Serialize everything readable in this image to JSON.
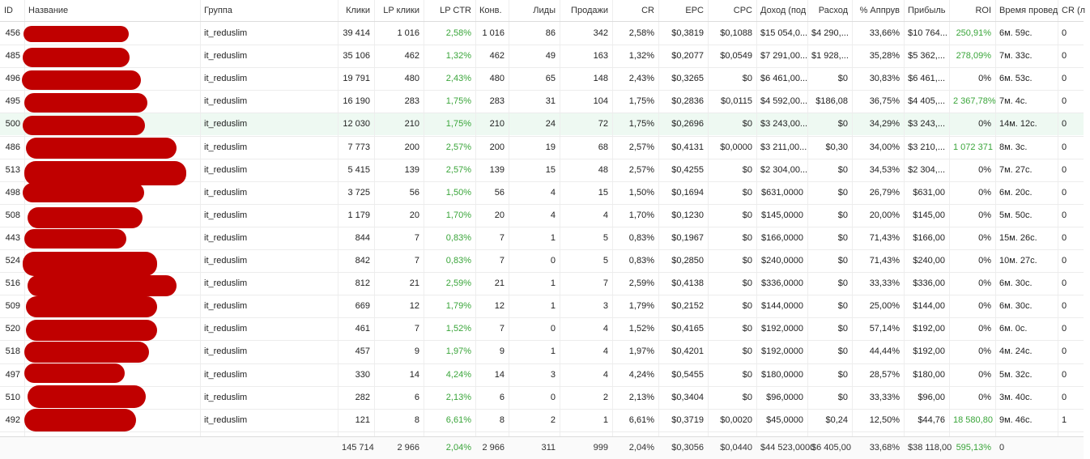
{
  "columns": [
    {
      "key": "id",
      "label": "ID"
    },
    {
      "key": "name",
      "label": "Название"
    },
    {
      "key": "group",
      "label": "Группа"
    },
    {
      "key": "clicks",
      "label": "Клики"
    },
    {
      "key": "lp_clicks",
      "label": "LP клики"
    },
    {
      "key": "lp_ctr",
      "label": "LP CTR"
    },
    {
      "key": "conv",
      "label": "Конв."
    },
    {
      "key": "leads",
      "label": "Лиды"
    },
    {
      "key": "sales",
      "label": "Продажи"
    },
    {
      "key": "cr",
      "label": "CR"
    },
    {
      "key": "epc",
      "label": "EPC"
    },
    {
      "key": "cpc",
      "label": "CPC"
    },
    {
      "key": "income",
      "label": "Доход (под"
    },
    {
      "key": "cost",
      "label": "Расход"
    },
    {
      "key": "approve",
      "label": "% Аппрув"
    },
    {
      "key": "profit",
      "label": "Прибыль"
    },
    {
      "key": "roi",
      "label": "ROI"
    },
    {
      "key": "time",
      "label": "Время провед"
    },
    {
      "key": "cr2",
      "label": "CR (л"
    }
  ],
  "rows": [
    {
      "id": "456",
      "group": "it_reduslim",
      "clicks": "39 414",
      "lp_clicks": "1 016",
      "lp_ctr": "2,58%",
      "conv": "1 016",
      "leads": "86",
      "sales": "342",
      "cr": "2,58%",
      "epc": "$0,3819",
      "cpc": "$0,1088",
      "income": "$15 054,0...",
      "cost": "$4 290,...",
      "approve": "33,66%",
      "profit": "$10 764...",
      "roi": "250,91%",
      "roi_green": true,
      "time": "6м. 59с.",
      "cr2": "0"
    },
    {
      "id": "485",
      "group": "it_reduslim",
      "clicks": "35 106",
      "lp_clicks": "462",
      "lp_ctr": "1,32%",
      "conv": "462",
      "leads": "49",
      "sales": "163",
      "cr": "1,32%",
      "epc": "$0,2077",
      "cpc": "$0,0549",
      "income": "$7 291,00...",
      "cost": "$1 928,...",
      "approve": "35,28%",
      "profit": "$5 362,...",
      "roi": "278,09%",
      "roi_green": true,
      "time": "7м. 33с.",
      "cr2": "0"
    },
    {
      "id": "496",
      "group": "it_reduslim",
      "clicks": "19 791",
      "lp_clicks": "480",
      "lp_ctr": "2,43%",
      "conv": "480",
      "leads": "65",
      "sales": "148",
      "cr": "2,43%",
      "epc": "$0,3265",
      "cpc": "$0",
      "income": "$6 461,00...",
      "cost": "$0",
      "approve": "30,83%",
      "profit": "$6 461,...",
      "roi": "0%",
      "roi_green": false,
      "time": "6м. 53с.",
      "cr2": "0"
    },
    {
      "id": "495",
      "group": "it_reduslim",
      "clicks": "16 190",
      "lp_clicks": "283",
      "lp_ctr": "1,75%",
      "conv": "283",
      "leads": "31",
      "sales": "104",
      "cr": "1,75%",
      "epc": "$0,2836",
      "cpc": "$0,0115",
      "income": "$4 592,00...",
      "cost": "$186,08",
      "approve": "36,75%",
      "profit": "$4 405,...",
      "roi": "2 367,78%",
      "roi_green": true,
      "time": "7м. 4с.",
      "cr2": "0"
    },
    {
      "id": "500",
      "group": "it_reduslim",
      "clicks": "12 030",
      "lp_clicks": "210",
      "lp_ctr": "1,75%",
      "conv": "210",
      "leads": "24",
      "sales": "72",
      "cr": "1,75%",
      "epc": "$0,2696",
      "cpc": "$0",
      "income": "$3 243,00...",
      "cost": "$0",
      "approve": "34,29%",
      "profit": "$3 243,...",
      "roi": "0%",
      "roi_green": false,
      "time": "14м. 12с.",
      "cr2": "0"
    },
    {
      "id": "486",
      "group": "it_reduslim",
      "clicks": "7 773",
      "lp_clicks": "200",
      "lp_ctr": "2,57%",
      "conv": "200",
      "leads": "19",
      "sales": "68",
      "cr": "2,57%",
      "epc": "$0,4131",
      "cpc": "$0,0000",
      "income": "$3 211,00...",
      "cost": "$0,30",
      "approve": "34,00%",
      "profit": "$3 210,...",
      "roi": "1 072 371",
      "roi_green": true,
      "time": "8м. 3с.",
      "cr2": "0"
    },
    {
      "id": "513",
      "group": "it_reduslim",
      "clicks": "5 415",
      "lp_clicks": "139",
      "lp_ctr": "2,57%",
      "conv": "139",
      "leads": "15",
      "sales": "48",
      "cr": "2,57%",
      "epc": "$0,4255",
      "cpc": "$0",
      "income": "$2 304,00...",
      "cost": "$0",
      "approve": "34,53%",
      "profit": "$2 304,...",
      "roi": "0%",
      "roi_green": false,
      "time": "7м. 27с.",
      "cr2": "0"
    },
    {
      "id": "498",
      "group": "it_reduslim",
      "clicks": "3 725",
      "lp_clicks": "56",
      "lp_ctr": "1,50%",
      "conv": "56",
      "leads": "4",
      "sales": "15",
      "cr": "1,50%",
      "epc": "$0,1694",
      "cpc": "$0",
      "income": "$631,0000",
      "cost": "$0",
      "approve": "26,79%",
      "profit": "$631,00",
      "roi": "0%",
      "roi_green": false,
      "time": "6м. 20с.",
      "cr2": "0"
    },
    {
      "id": "508",
      "group": "it_reduslim",
      "clicks": "1 179",
      "lp_clicks": "20",
      "lp_ctr": "1,70%",
      "conv": "20",
      "leads": "4",
      "sales": "4",
      "cr": "1,70%",
      "epc": "$0,1230",
      "cpc": "$0",
      "income": "$145,0000",
      "cost": "$0",
      "approve": "20,00%",
      "profit": "$145,00",
      "roi": "0%",
      "roi_green": false,
      "time": "5м. 50с.",
      "cr2": "0"
    },
    {
      "id": "443",
      "group": "it_reduslim",
      "clicks": "844",
      "lp_clicks": "7",
      "lp_ctr": "0,83%",
      "conv": "7",
      "leads": "1",
      "sales": "5",
      "cr": "0,83%",
      "epc": "$0,1967",
      "cpc": "$0",
      "income": "$166,0000",
      "cost": "$0",
      "approve": "71,43%",
      "profit": "$166,00",
      "roi": "0%",
      "roi_green": false,
      "time": "15м. 26с.",
      "cr2": "0"
    },
    {
      "id": "524",
      "group": "it_reduslim",
      "clicks": "842",
      "lp_clicks": "7",
      "lp_ctr": "0,83%",
      "conv": "7",
      "leads": "0",
      "sales": "5",
      "cr": "0,83%",
      "epc": "$0,2850",
      "cpc": "$0",
      "income": "$240,0000",
      "cost": "$0",
      "approve": "71,43%",
      "profit": "$240,00",
      "roi": "0%",
      "roi_green": false,
      "time": "10м. 27с.",
      "cr2": "0"
    },
    {
      "id": "516",
      "group": "it_reduslim",
      "clicks": "812",
      "lp_clicks": "21",
      "lp_ctr": "2,59%",
      "conv": "21",
      "leads": "1",
      "sales": "7",
      "cr": "2,59%",
      "epc": "$0,4138",
      "cpc": "$0",
      "income": "$336,0000",
      "cost": "$0",
      "approve": "33,33%",
      "profit": "$336,00",
      "roi": "0%",
      "roi_green": false,
      "time": "6м. 30с.",
      "cr2": "0"
    },
    {
      "id": "509",
      "group": "it_reduslim",
      "clicks": "669",
      "lp_clicks": "12",
      "lp_ctr": "1,79%",
      "conv": "12",
      "leads": "1",
      "sales": "3",
      "cr": "1,79%",
      "epc": "$0,2152",
      "cpc": "$0",
      "income": "$144,0000",
      "cost": "$0",
      "approve": "25,00%",
      "profit": "$144,00",
      "roi": "0%",
      "roi_green": false,
      "time": "6м. 30с.",
      "cr2": "0"
    },
    {
      "id": "520",
      "group": "it_reduslim",
      "clicks": "461",
      "lp_clicks": "7",
      "lp_ctr": "1,52%",
      "conv": "7",
      "leads": "0",
      "sales": "4",
      "cr": "1,52%",
      "epc": "$0,4165",
      "cpc": "$0",
      "income": "$192,0000",
      "cost": "$0",
      "approve": "57,14%",
      "profit": "$192,00",
      "roi": "0%",
      "roi_green": false,
      "time": "6м. 0с.",
      "cr2": "0"
    },
    {
      "id": "518",
      "group": "it_reduslim",
      "clicks": "457",
      "lp_clicks": "9",
      "lp_ctr": "1,97%",
      "conv": "9",
      "leads": "1",
      "sales": "4",
      "cr": "1,97%",
      "epc": "$0,4201",
      "cpc": "$0",
      "income": "$192,0000",
      "cost": "$0",
      "approve": "44,44%",
      "profit": "$192,00",
      "roi": "0%",
      "roi_green": false,
      "time": "4м. 24с.",
      "cr2": "0"
    },
    {
      "id": "497",
      "group": "it_reduslim",
      "clicks": "330",
      "lp_clicks": "14",
      "lp_ctr": "4,24%",
      "conv": "14",
      "leads": "3",
      "sales": "4",
      "cr": "4,24%",
      "epc": "$0,5455",
      "cpc": "$0",
      "income": "$180,0000",
      "cost": "$0",
      "approve": "28,57%",
      "profit": "$180,00",
      "roi": "0%",
      "roi_green": false,
      "time": "5м. 32с.",
      "cr2": "0"
    },
    {
      "id": "510",
      "group": "it_reduslim",
      "clicks": "282",
      "lp_clicks": "6",
      "lp_ctr": "2,13%",
      "conv": "6",
      "leads": "0",
      "sales": "2",
      "cr": "2,13%",
      "epc": "$0,3404",
      "cpc": "$0",
      "income": "$96,0000",
      "cost": "$0",
      "approve": "33,33%",
      "profit": "$96,00",
      "roi": "0%",
      "roi_green": false,
      "time": "3м. 40с.",
      "cr2": "0"
    },
    {
      "id": "492",
      "group": "it_reduslim",
      "clicks": "121",
      "lp_clicks": "8",
      "lp_ctr": "6,61%",
      "conv": "8",
      "leads": "2",
      "sales": "1",
      "cr": "6,61%",
      "epc": "$0,3719",
      "cpc": "$0,0020",
      "income": "$45,0000",
      "cost": "$0,24",
      "approve": "12,50%",
      "profit": "$44,76",
      "roi": "18 580,80",
      "roi_green": true,
      "time": "9м. 46с.",
      "cr2": "1"
    }
  ],
  "totals": {
    "clicks": "145 714",
    "lp_clicks": "2 966",
    "lp_ctr": "2,04%",
    "conv": "2 966",
    "leads": "311",
    "sales": "999",
    "cr": "2,04%",
    "epc": "$0,3056",
    "cpc": "$0,0440",
    "income": "$44 523,0000",
    "cost": "$6 405,00",
    "approve": "33,68%",
    "profit": "$38 118,00",
    "roi": "595,13%",
    "time": "0"
  },
  "highlighted_row_id": "500",
  "colors": {
    "green": "#3aa53a",
    "redact": "#c00000",
    "highlight": "#eef9f2"
  }
}
